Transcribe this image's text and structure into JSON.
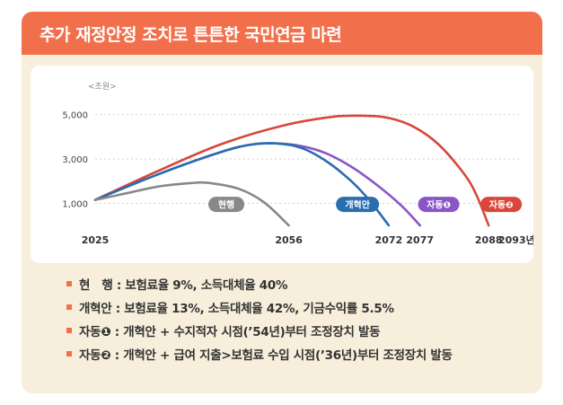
{
  "header": {
    "title": "추가 재정안정 조치로 튼튼한 국민연금 마련"
  },
  "colors": {
    "accent": "#f26f4c",
    "current": "#888888",
    "reform": "#2a6db0",
    "auto1": "#8a55c6",
    "auto2": "#d9473a"
  },
  "chart_data": {
    "type": "line",
    "y_unit": "<조원>",
    "yticks": [
      {
        "value": 1000,
        "label": "1,000"
      },
      {
        "value": 3000,
        "label": "3,000"
      },
      {
        "value": 5000,
        "label": "5,000"
      }
    ],
    "ylim": [
      0,
      6000
    ],
    "xlim": [
      2025,
      2093
    ],
    "xticks": [
      {
        "value": 2025,
        "label": "2025"
      },
      {
        "value": 2056,
        "label": "2056"
      },
      {
        "value": 2072,
        "label": "2072"
      },
      {
        "value": 2077,
        "label": "2077"
      },
      {
        "value": 2088,
        "label": "2088"
      },
      {
        "value": 2093,
        "label": "2093년"
      }
    ],
    "series": [
      {
        "name": "현행",
        "color_key": "current",
        "depletion_year": 2056,
        "points": [
          [
            2025,
            1150
          ],
          [
            2030,
            1450
          ],
          [
            2035,
            1750
          ],
          [
            2040,
            1900
          ],
          [
            2043,
            1920
          ],
          [
            2048,
            1650
          ],
          [
            2052,
            1050
          ],
          [
            2056,
            0
          ]
        ]
      },
      {
        "name": "개혁안",
        "color_key": "reform",
        "depletion_year": 2072,
        "points": [
          [
            2025,
            1150
          ],
          [
            2035,
            2300
          ],
          [
            2045,
            3300
          ],
          [
            2050,
            3650
          ],
          [
            2054,
            3700
          ],
          [
            2058,
            3500
          ],
          [
            2062,
            2900
          ],
          [
            2066,
            2000
          ],
          [
            2069,
            1100
          ],
          [
            2072,
            0
          ]
        ]
      },
      {
        "name": "자동❶",
        "color_key": "auto1",
        "depletion_year": 2077,
        "points": [
          [
            2025,
            1150
          ],
          [
            2035,
            2300
          ],
          [
            2045,
            3300
          ],
          [
            2050,
            3650
          ],
          [
            2054,
            3700
          ],
          [
            2058,
            3580
          ],
          [
            2062,
            3250
          ],
          [
            2066,
            2650
          ],
          [
            2070,
            1850
          ],
          [
            2074,
            900
          ],
          [
            2077,
            0
          ]
        ]
      },
      {
        "name": "자동❷",
        "color_key": "auto2",
        "depletion_year": 2088,
        "points": [
          [
            2025,
            1150
          ],
          [
            2035,
            2450
          ],
          [
            2045,
            3650
          ],
          [
            2055,
            4500
          ],
          [
            2063,
            4900
          ],
          [
            2068,
            4950
          ],
          [
            2072,
            4850
          ],
          [
            2076,
            4450
          ],
          [
            2080,
            3650
          ],
          [
            2084,
            2350
          ],
          [
            2086,
            1400
          ],
          [
            2088,
            0
          ]
        ]
      }
    ]
  },
  "legend": [
    {
      "label": "현　행",
      "desc": " : 보험료율 9%, 소득대체율 40%"
    },
    {
      "label": "개혁안",
      "desc": " : 보험료율 13%, 소득대체율 42%, 기금수익률 5.5%"
    },
    {
      "label": "자동❶",
      "desc": " : 개혁안 + 수지적자 시점(’54년)부터 조정장치 발동"
    },
    {
      "label": "자동❷",
      "desc": " : 개혁안 + 급여 지출>보험료 수입 시점(’36년)부터 조정장치 발동"
    }
  ]
}
